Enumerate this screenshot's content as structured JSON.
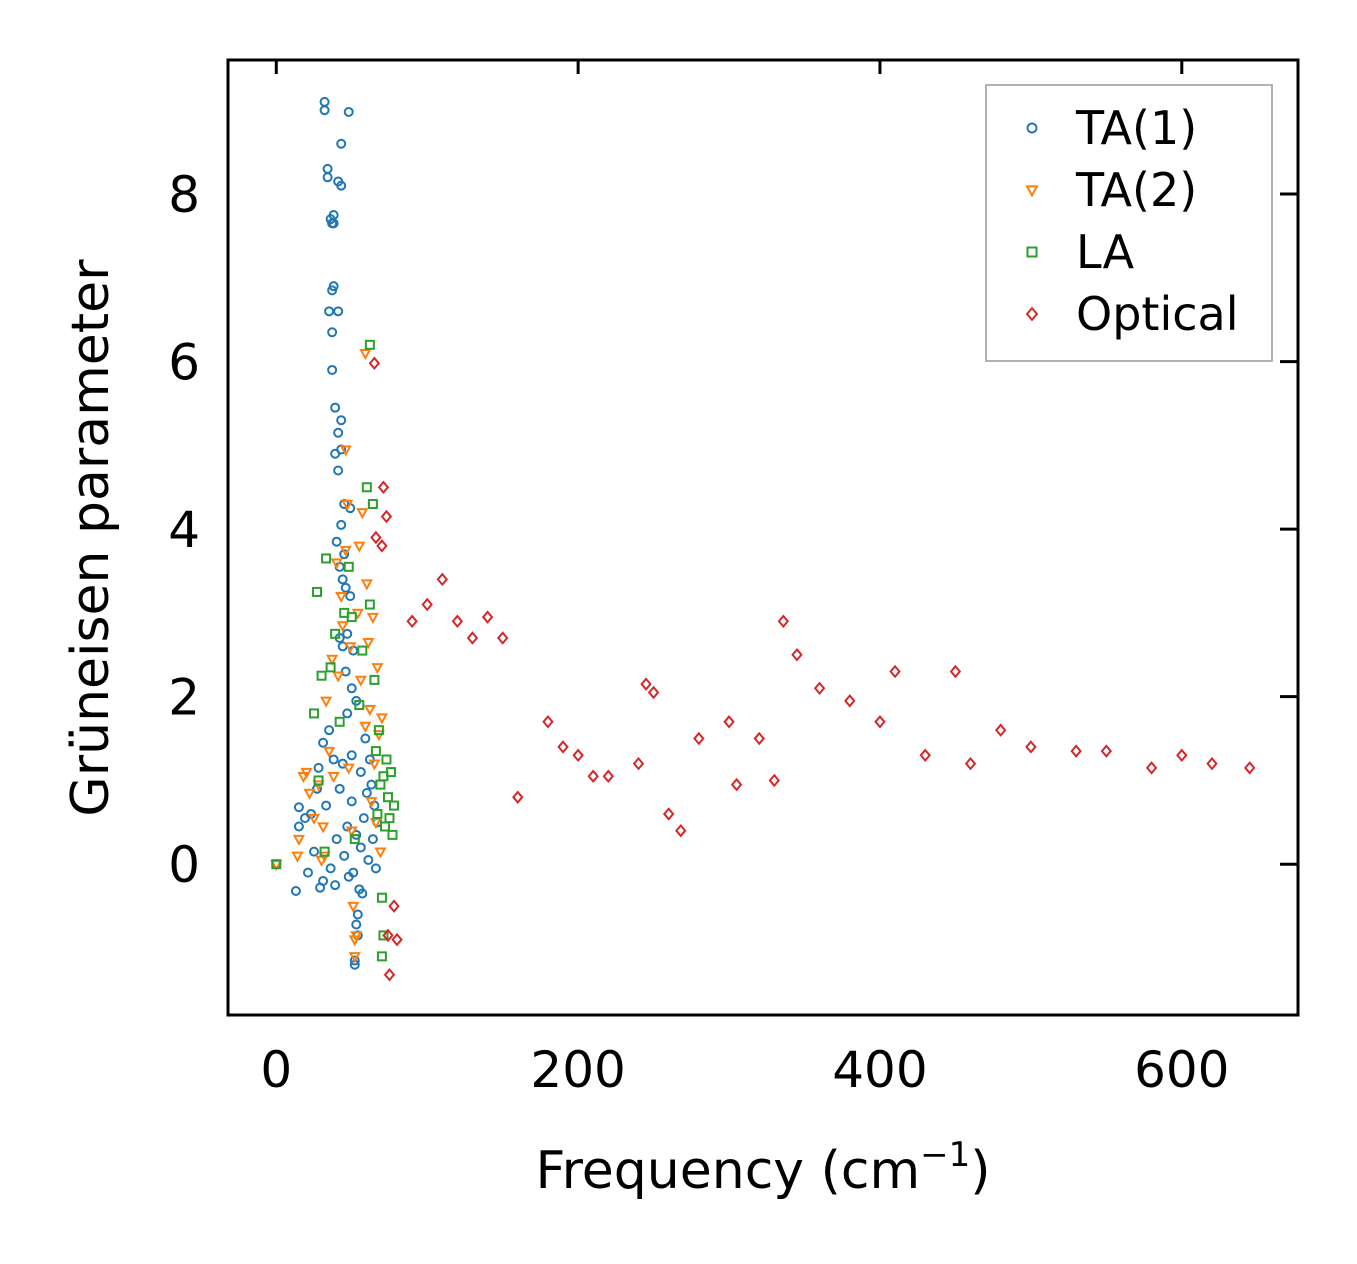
{
  "chart_data": {
    "type": "scatter",
    "xlabel": "Frequency (cm",
    "xlabel_sup": "−1",
    "xlabel_end": ")",
    "ylabel": "Grüneisen parameter",
    "xlim": [
      -32,
      677
    ],
    "ylim": [
      -1.8,
      9.6
    ],
    "xticks": [
      0,
      200,
      400,
      600
    ],
    "yticks": [
      0,
      2,
      4,
      6,
      8
    ],
    "grid": false,
    "legend_position": "top-right",
    "series": [
      {
        "name": "TA(1)",
        "marker": "circle",
        "color": "#1f77b4",
        "points": [
          [
            0,
            0
          ],
          [
            13,
            -0.32
          ],
          [
            15,
            0.68
          ],
          [
            15,
            0.45
          ],
          [
            19,
            0.55
          ],
          [
            21,
            -0.1
          ],
          [
            23,
            0.6
          ],
          [
            25,
            0.15
          ],
          [
            27,
            0.9
          ],
          [
            28,
            1.15
          ],
          [
            29,
            -0.28
          ],
          [
            31,
            -0.2
          ],
          [
            31,
            1.45
          ],
          [
            32,
            9.0
          ],
          [
            32,
            9.1
          ],
          [
            33,
            0.7
          ],
          [
            34,
            8.3
          ],
          [
            34,
            8.2
          ],
          [
            35,
            1.6
          ],
          [
            35,
            6.6
          ],
          [
            36,
            7.7
          ],
          [
            36,
            -0.05
          ],
          [
            37,
            7.65
          ],
          [
            37,
            6.85
          ],
          [
            37,
            6.35
          ],
          [
            37,
            5.9
          ],
          [
            38,
            7.75
          ],
          [
            38,
            7.65
          ],
          [
            38,
            6.9
          ],
          [
            38,
            1.25
          ],
          [
            39,
            -0.25
          ],
          [
            39,
            5.45
          ],
          [
            39,
            4.9
          ],
          [
            40,
            3.85
          ],
          [
            40,
            0.3
          ],
          [
            41,
            8.15
          ],
          [
            41,
            6.6
          ],
          [
            41,
            5.15
          ],
          [
            41,
            4.7
          ],
          [
            42,
            3.55
          ],
          [
            42,
            2.7
          ],
          [
            42,
            0.9
          ],
          [
            43,
            8.6
          ],
          [
            43,
            8.1
          ],
          [
            43,
            5.3
          ],
          [
            43,
            4.95
          ],
          [
            43,
            4.05
          ],
          [
            44,
            3.4
          ],
          [
            44,
            2.6
          ],
          [
            44,
            1.2
          ],
          [
            45,
            4.3
          ],
          [
            45,
            3.7
          ],
          [
            45,
            0.1
          ],
          [
            46,
            3.3
          ],
          [
            46,
            2.3
          ],
          [
            47,
            2.75
          ],
          [
            47,
            1.8
          ],
          [
            47,
            0.45
          ],
          [
            48,
            8.98
          ],
          [
            48,
            -0.15
          ],
          [
            49,
            4.25
          ],
          [
            49,
            3.2
          ],
          [
            50,
            2.1
          ],
          [
            50,
            1.3
          ],
          [
            50,
            0.75
          ],
          [
            51,
            -0.1
          ],
          [
            51,
            2.55
          ],
          [
            52,
            -1.2
          ],
          [
            52,
            -1.15
          ],
          [
            53,
            -0.72
          ],
          [
            53,
            0.35
          ],
          [
            53,
            1.95
          ],
          [
            54,
            -0.85
          ],
          [
            54,
            -0.6
          ],
          [
            55,
            -0.3
          ],
          [
            56,
            1.1
          ],
          [
            56,
            0.2
          ],
          [
            57,
            -0.35
          ],
          [
            58,
            0.55
          ],
          [
            59,
            1.5
          ],
          [
            60,
            0.85
          ],
          [
            61,
            0.05
          ],
          [
            62,
            1.25
          ],
          [
            63,
            0.95
          ],
          [
            64,
            0.3
          ],
          [
            65,
            0.7
          ],
          [
            66,
            -0.05
          ],
          [
            67,
            0.5
          ]
        ]
      },
      {
        "name": "TA(2)",
        "marker": "triangle-down",
        "color": "#ff7f0e",
        "points": [
          [
            0,
            0
          ],
          [
            14,
            0.1
          ],
          [
            15,
            0.3
          ],
          [
            18,
            1.05
          ],
          [
            20,
            1.1
          ],
          [
            22,
            0.85
          ],
          [
            25,
            0.55
          ],
          [
            28,
            0.95
          ],
          [
            30,
            0.05
          ],
          [
            31,
            0.45
          ],
          [
            32,
            0.1
          ],
          [
            33,
            1.95
          ],
          [
            35,
            1.35
          ],
          [
            37,
            2.45
          ],
          [
            38,
            1.05
          ],
          [
            40,
            3.6
          ],
          [
            41,
            2.25
          ],
          [
            43,
            3.2
          ],
          [
            44,
            2.85
          ],
          [
            46,
            3.75
          ],
          [
            46,
            4.95
          ],
          [
            47,
            4.3
          ],
          [
            48,
            1.15
          ],
          [
            49,
            2.6
          ],
          [
            50,
            0.4
          ],
          [
            51,
            -0.5
          ],
          [
            52,
            -0.9
          ],
          [
            52,
            -1.1
          ],
          [
            53,
            -0.85
          ],
          [
            54,
            3.0
          ],
          [
            55,
            3.8
          ],
          [
            56,
            2.2
          ],
          [
            57,
            4.2
          ],
          [
            59,
            6.1
          ],
          [
            59,
            1.65
          ],
          [
            60,
            3.35
          ],
          [
            61,
            2.65
          ],
          [
            62,
            1.85
          ],
          [
            63,
            0.75
          ],
          [
            64,
            2.95
          ],
          [
            65,
            1.2
          ],
          [
            66,
            0.5
          ],
          [
            67,
            2.35
          ],
          [
            68,
            1.55
          ],
          [
            69,
            0.15
          ],
          [
            70,
            1.75
          ]
        ]
      },
      {
        "name": "LA",
        "marker": "square",
        "color": "#2ca02c",
        "points": [
          [
            0,
            0
          ],
          [
            25,
            1.8
          ],
          [
            27,
            3.25
          ],
          [
            28,
            1.0
          ],
          [
            30,
            2.25
          ],
          [
            32,
            0.15
          ],
          [
            33,
            3.65
          ],
          [
            36,
            2.35
          ],
          [
            39,
            2.75
          ],
          [
            42,
            1.7
          ],
          [
            45,
            3.0
          ],
          [
            48,
            3.55
          ],
          [
            50,
            2.95
          ],
          [
            52,
            0.3
          ],
          [
            55,
            1.9
          ],
          [
            57,
            2.55
          ],
          [
            60,
            4.5
          ],
          [
            62,
            6.2
          ],
          [
            62,
            3.1
          ],
          [
            64,
            4.3
          ],
          [
            65,
            2.2
          ],
          [
            66,
            1.35
          ],
          [
            67,
            0.6
          ],
          [
            68,
            1.6
          ],
          [
            69,
            0.95
          ],
          [
            70,
            -1.1
          ],
          [
            70,
            -0.4
          ],
          [
            71,
            -0.85
          ],
          [
            71,
            1.05
          ],
          [
            72,
            0.45
          ],
          [
            73,
            1.25
          ],
          [
            74,
            0.8
          ],
          [
            75,
            0.55
          ],
          [
            76,
            1.1
          ],
          [
            77,
            0.35
          ],
          [
            78,
            0.7
          ]
        ]
      },
      {
        "name": "Optical",
        "marker": "diamond",
        "color": "#d62728",
        "points": [
          [
            65,
            5.98
          ],
          [
            66,
            3.9
          ],
          [
            70,
            3.8
          ],
          [
            71,
            4.5
          ],
          [
            73,
            4.15
          ],
          [
            74,
            -0.85
          ],
          [
            75,
            -1.32
          ],
          [
            78,
            -0.5
          ],
          [
            80,
            -0.9
          ],
          [
            90,
            2.9
          ],
          [
            100,
            3.1
          ],
          [
            110,
            3.4
          ],
          [
            120,
            2.9
          ],
          [
            130,
            2.7
          ],
          [
            140,
            2.95
          ],
          [
            150,
            2.7
          ],
          [
            160,
            0.8
          ],
          [
            180,
            1.7
          ],
          [
            190,
            1.4
          ],
          [
            200,
            1.3
          ],
          [
            210,
            1.05
          ],
          [
            220,
            1.05
          ],
          [
            240,
            1.2
          ],
          [
            245,
            2.15
          ],
          [
            250,
            2.05
          ],
          [
            260,
            0.6
          ],
          [
            268,
            0.4
          ],
          [
            280,
            1.5
          ],
          [
            300,
            1.7
          ],
          [
            305,
            0.95
          ],
          [
            320,
            1.5
          ],
          [
            330,
            1.0
          ],
          [
            336,
            2.9
          ],
          [
            345,
            2.5
          ],
          [
            360,
            2.1
          ],
          [
            380,
            1.95
          ],
          [
            400,
            1.7
          ],
          [
            410,
            2.3
          ],
          [
            430,
            1.3
          ],
          [
            450,
            2.3
          ],
          [
            460,
            1.2
          ],
          [
            480,
            1.6
          ],
          [
            500,
            1.4
          ],
          [
            530,
            1.35
          ],
          [
            550,
            1.35
          ],
          [
            580,
            1.15
          ],
          [
            600,
            1.3
          ],
          [
            620,
            1.2
          ],
          [
            645,
            1.15
          ]
        ]
      }
    ]
  }
}
